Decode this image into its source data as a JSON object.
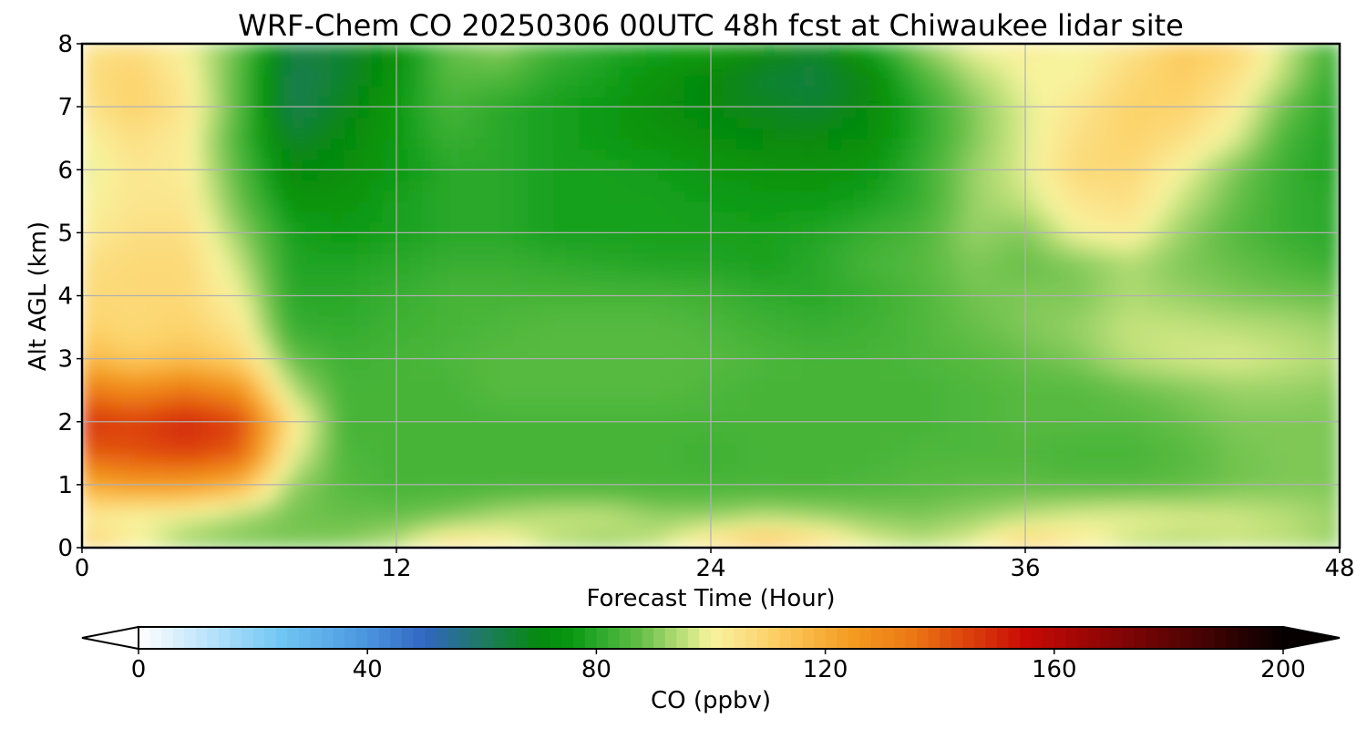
{
  "chart_data": {
    "type": "heatmap",
    "title": "WRF-Chem CO  20250306 00UTC 48h fcst at Chiwaukee lidar site",
    "xlabel": "Forecast Time (Hour)",
    "ylabel": "Alt AGL (km)",
    "xlim": [
      0,
      48
    ],
    "ylim": [
      0,
      8
    ],
    "xticks": [
      "0",
      "12",
      "24",
      "36",
      "48"
    ],
    "yticks": [
      "0",
      "1",
      "2",
      "3",
      "4",
      "5",
      "6",
      "7",
      "8"
    ],
    "grid": true,
    "x_hours": [
      0,
      2,
      4,
      6,
      8,
      10,
      12,
      14,
      16,
      18,
      20,
      22,
      24,
      26,
      28,
      30,
      32,
      34,
      36,
      38,
      40,
      42,
      44,
      46,
      48
    ],
    "y_km": [
      0,
      0.5,
      1,
      1.5,
      2,
      2.5,
      3,
      3.5,
      4,
      4.5,
      5,
      5.5,
      6,
      6.5,
      7,
      7.5,
      8
    ],
    "values_ppbv": [
      [
        112,
        102,
        92,
        90,
        90,
        91,
        96,
        108,
        104,
        95,
        92,
        97,
        108,
        118,
        110,
        100,
        96,
        100,
        112,
        104,
        96,
        94,
        96,
        95,
        92
      ],
      [
        102,
        100,
        98,
        93,
        89,
        88,
        88,
        90,
        94,
        96,
        96,
        92,
        92,
        94,
        93,
        91,
        90,
        92,
        95,
        98,
        99,
        98,
        97,
        95,
        92
      ],
      [
        120,
        125,
        125,
        118,
        92,
        86,
        84,
        84,
        84,
        84,
        84,
        84,
        84,
        84,
        84,
        85,
        86,
        87,
        87,
        86,
        86,
        87,
        89,
        90,
        90
      ],
      [
        140,
        142,
        145,
        140,
        100,
        85,
        84,
        84,
        84,
        84,
        84,
        84,
        83,
        84,
        84,
        84,
        85,
        85,
        85,
        84,
        84,
        86,
        89,
        90,
        90
      ],
      [
        148,
        145,
        150,
        145,
        105,
        84,
        84,
        84,
        84,
        84,
        84,
        84,
        84,
        84,
        84,
        84,
        84,
        85,
        86,
        86,
        86,
        88,
        90,
        90,
        90
      ],
      [
        135,
        130,
        135,
        128,
        95,
        84,
        84,
        84,
        86,
        86,
        86,
        86,
        85,
        84,
        84,
        84,
        84,
        85,
        86,
        86,
        88,
        90,
        92,
        92,
        91
      ],
      [
        118,
        112,
        115,
        110,
        88,
        83,
        84,
        85,
        86,
        86,
        86,
        86,
        86,
        85,
        84,
        84,
        85,
        86,
        88,
        90,
        95,
        97,
        98,
        96,
        94
      ],
      [
        110,
        108,
        110,
        104,
        82,
        81,
        83,
        84,
        85,
        86,
        86,
        86,
        85,
        83,
        82,
        83,
        85,
        88,
        90,
        92,
        96,
        96,
        95,
        94,
        92
      ],
      [
        108,
        108,
        108,
        100,
        80,
        80,
        82,
        84,
        84,
        84,
        84,
        84,
        83,
        81,
        80,
        82,
        85,
        89,
        90,
        90,
        94,
        92,
        90,
        89,
        88
      ],
      [
        106,
        108,
        108,
        96,
        79,
        79,
        80,
        82,
        82,
        81,
        80,
        79,
        79,
        78,
        80,
        84,
        86,
        90,
        88,
        90,
        94,
        90,
        88,
        85,
        82
      ],
      [
        102,
        106,
        106,
        92,
        78,
        76,
        78,
        80,
        80,
        78,
        78,
        78,
        78,
        78,
        79,
        82,
        85,
        92,
        90,
        100,
        102,
        92,
        86,
        82,
        80
      ],
      [
        100,
        104,
        104,
        88,
        74,
        74,
        78,
        80,
        80,
        78,
        78,
        78,
        77,
        76,
        76,
        78,
        82,
        92,
        96,
        104,
        106,
        96,
        88,
        82,
        80
      ],
      [
        98,
        104,
        102,
        86,
        70,
        72,
        76,
        80,
        80,
        78,
        78,
        77,
        75,
        74,
        73,
        75,
        82,
        92,
        98,
        108,
        108,
        100,
        90,
        82,
        78
      ],
      [
        100,
        106,
        102,
        84,
        66,
        70,
        76,
        82,
        80,
        78,
        76,
        74,
        72,
        70,
        70,
        72,
        80,
        90,
        98,
        106,
        110,
        106,
        98,
        84,
        78
      ],
      [
        104,
        110,
        104,
        86,
        62,
        68,
        76,
        84,
        80,
        78,
        76,
        72,
        70,
        68,
        66,
        70,
        80,
        90,
        98,
        104,
        110,
        110,
        102,
        88,
        78
      ],
      [
        106,
        110,
        102,
        86,
        62,
        66,
        74,
        86,
        86,
        80,
        78,
        74,
        70,
        66,
        64,
        70,
        84,
        94,
        100,
        100,
        108,
        112,
        106,
        94,
        80
      ],
      [
        104,
        106,
        100,
        88,
        64,
        66,
        72,
        88,
        92,
        84,
        80,
        78,
        78,
        72,
        68,
        78,
        92,
        100,
        102,
        100,
        104,
        112,
        110,
        96,
        82
      ]
    ],
    "colorbar": {
      "label": "CO  (ppbv)",
      "min": 0,
      "max": 200,
      "ticks": [
        "0",
        "40",
        "80",
        "120",
        "160",
        "200"
      ],
      "extend": "both",
      "colors": [
        {
          "v": 0,
          "c": "#ffffff"
        },
        {
          "v": 10,
          "c": "#c6e8fb"
        },
        {
          "v": 25,
          "c": "#6fc6f4"
        },
        {
          "v": 40,
          "c": "#4a95de"
        },
        {
          "v": 50,
          "c": "#3266c2"
        },
        {
          "v": 60,
          "c": "#1e7a64"
        },
        {
          "v": 70,
          "c": "#06890e"
        },
        {
          "v": 76,
          "c": "#089912"
        },
        {
          "v": 80,
          "c": "#2aa82a"
        },
        {
          "v": 84,
          "c": "#46b438"
        },
        {
          "v": 88,
          "c": "#66bf48"
        },
        {
          "v": 92,
          "c": "#98d166"
        },
        {
          "v": 96,
          "c": "#c6e37e"
        },
        {
          "v": 100,
          "c": "#f7f49e"
        },
        {
          "v": 105,
          "c": "#fbe289"
        },
        {
          "v": 110,
          "c": "#fcd36a"
        },
        {
          "v": 118,
          "c": "#f9b441"
        },
        {
          "v": 125,
          "c": "#f39a1f"
        },
        {
          "v": 135,
          "c": "#ec7815"
        },
        {
          "v": 145,
          "c": "#dc410c"
        },
        {
          "v": 155,
          "c": "#c80a05"
        },
        {
          "v": 170,
          "c": "#8a0505"
        },
        {
          "v": 185,
          "c": "#4a0303"
        },
        {
          "v": 200,
          "c": "#060000"
        }
      ]
    }
  }
}
